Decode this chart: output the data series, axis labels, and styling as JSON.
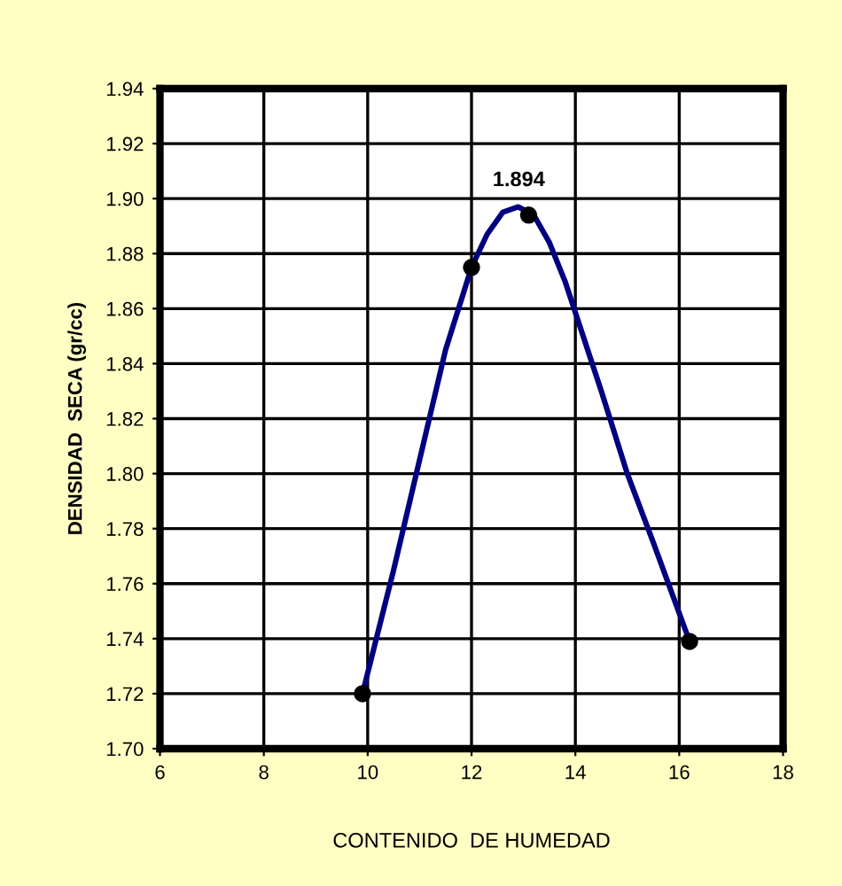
{
  "chart_data": {
    "type": "scatter",
    "xlabel": "CONTENIDO  DE HUMEDAD",
    "ylabel": "DENSIDAD  SECA (gr/cc)",
    "xlim": [
      6,
      18
    ],
    "xticks": [
      6,
      8,
      10,
      12,
      14,
      16,
      18
    ],
    "ylim": [
      1.7,
      1.94
    ],
    "yticks": [
      {
        "value": 1.7,
        "label": "1.70"
      },
      1.72,
      1.74,
      1.76,
      1.78,
      {
        "value": 1.8,
        "label": "1.80"
      },
      1.82,
      1.84,
      1.86,
      1.88,
      {
        "value": 1.9,
        "label": "1.90"
      },
      1.92,
      1.94
    ],
    "grid": true,
    "marker": "circle",
    "series": [
      {
        "type": "line",
        "color": "#000080",
        "marker": "none",
        "line_style": "solid",
        "x": [
          9.9,
          10.5,
          11,
          11.5,
          12,
          12.3,
          12.6,
          12.9,
          13.2,
          13.5,
          13.8,
          14.5,
          15,
          15.5,
          16.2
        ],
        "values": [
          1.72,
          1.765,
          1.805,
          1.845,
          1.875,
          1.887,
          1.895,
          1.897,
          1.894,
          1.884,
          1.87,
          1.83,
          1.8,
          1.775,
          1.739
        ]
      },
      {
        "color": "#000000",
        "x": [
          9.9,
          12.0,
          13.1,
          16.2
        ],
        "values": [
          1.72,
          1.875,
          1.894,
          1.739
        ],
        "value_labels": [
          null,
          null,
          "1.894",
          null
        ]
      }
    ]
  }
}
